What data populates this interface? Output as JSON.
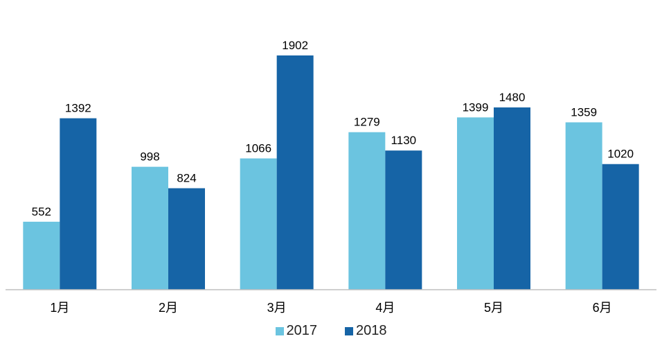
{
  "chart_data": {
    "type": "bar",
    "title": "",
    "xlabel": "",
    "ylabel": "",
    "categories": [
      "1月",
      "2月",
      "3月",
      "4月",
      "5月",
      "6月"
    ],
    "series": [
      {
        "name": "2017",
        "color": "#6bc4e0",
        "values": [
          552,
          998,
          1066,
          1279,
          1399,
          1359
        ]
      },
      {
        "name": "2018",
        "color": "#1664a6",
        "values": [
          1392,
          824,
          1902,
          1130,
          1480,
          1020
        ]
      }
    ],
    "ylim": [
      0,
      1902
    ],
    "grid": false,
    "legend": "bottom-center",
    "data_labels": true
  }
}
